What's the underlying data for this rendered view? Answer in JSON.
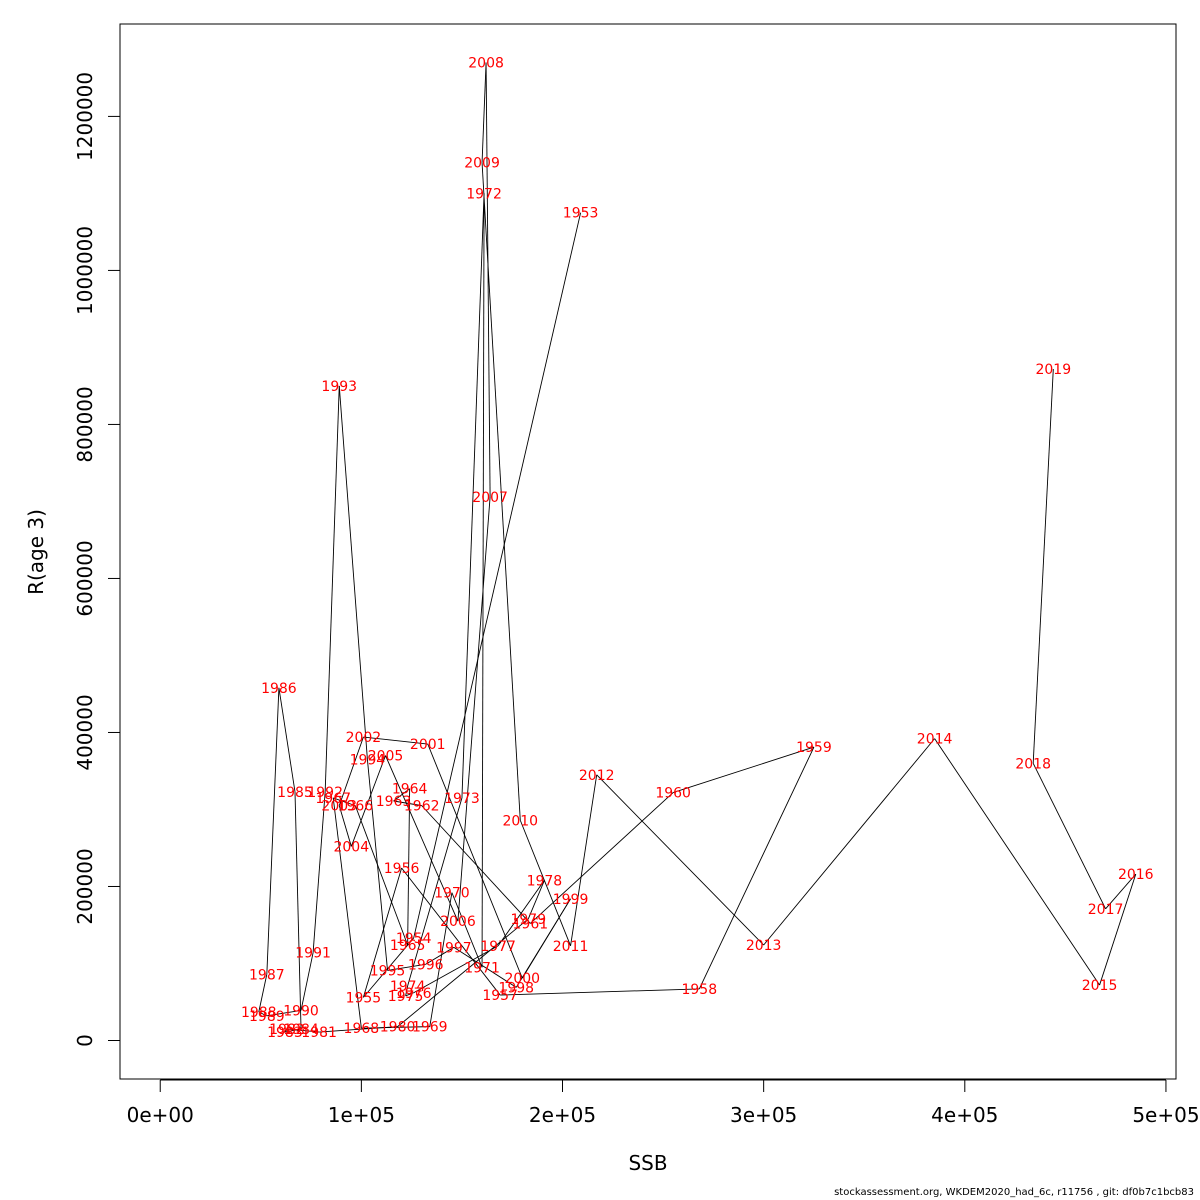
{
  "chart_data": {
    "type": "line",
    "xlabel": "SSB",
    "ylabel": "R(age 3)",
    "xlim": [
      -20000,
      505000
    ],
    "ylim": [
      -50000,
      1320000
    ],
    "x_ticks": [
      0,
      100000,
      200000,
      300000,
      400000,
      500000
    ],
    "x_tick_labels": [
      "0e+00",
      "1e+05",
      "2e+05",
      "3e+05",
      "4e+05",
      "5e+05"
    ],
    "y_ticks": [
      0,
      200000,
      400000,
      600000,
      800000,
      1000000,
      1200000
    ],
    "y_tick_labels": [
      "0",
      "200000",
      "400000",
      "600000",
      "800000",
      "1000000",
      "1200000"
    ],
    "grid": false,
    "label_color": "#ff0000",
    "line_color": "#000000",
    "points": [
      {
        "year": "1953",
        "x": 209000,
        "y": 1075000
      },
      {
        "year": "1954",
        "x": 126000,
        "y": 133000
      },
      {
        "year": "1955",
        "x": 101000,
        "y": 56000
      },
      {
        "year": "1956",
        "x": 120000,
        "y": 224000
      },
      {
        "year": "1957",
        "x": 169000,
        "y": 59000
      },
      {
        "year": "1958",
        "x": 268000,
        "y": 67000
      },
      {
        "year": "1959",
        "x": 325000,
        "y": 381000
      },
      {
        "year": "1960",
        "x": 255000,
        "y": 322000
      },
      {
        "year": "1961",
        "x": 184000,
        "y": 152000
      },
      {
        "year": "1962",
        "x": 130000,
        "y": 305000
      },
      {
        "year": "1963",
        "x": 116000,
        "y": 311000
      },
      {
        "year": "1964",
        "x": 124000,
        "y": 327000
      },
      {
        "year": "1965",
        "x": 123000,
        "y": 124000
      },
      {
        "year": "1966",
        "x": 97000,
        "y": 305000
      },
      {
        "year": "1967",
        "x": 86000,
        "y": 315000
      },
      {
        "year": "1968",
        "x": 100000,
        "y": 16000
      },
      {
        "year": "1969",
        "x": 134000,
        "y": 18000
      },
      {
        "year": "1970",
        "x": 145000,
        "y": 192000
      },
      {
        "year": "1971",
        "x": 160000,
        "y": 95000
      },
      {
        "year": "1972",
        "x": 161000,
        "y": 1100000
      },
      {
        "year": "1973",
        "x": 150000,
        "y": 315000
      },
      {
        "year": "1974",
        "x": 123000,
        "y": 71000
      },
      {
        "year": "1975",
        "x": 122000,
        "y": 58000
      },
      {
        "year": "1976",
        "x": 126000,
        "y": 62000
      },
      {
        "year": "1977",
        "x": 168000,
        "y": 123000
      },
      {
        "year": "1978",
        "x": 191000,
        "y": 208000
      },
      {
        "year": "1979",
        "x": 183000,
        "y": 158000
      },
      {
        "year": "1980",
        "x": 118000,
        "y": 18000
      },
      {
        "year": "1981",
        "x": 79000,
        "y": 11000
      },
      {
        "year": "1982",
        "x": 63000,
        "y": 15000
      },
      {
        "year": "1983",
        "x": 62000,
        "y": 11000
      },
      {
        "year": "1984",
        "x": 70000,
        "y": 15000
      },
      {
        "year": "1985",
        "x": 67000,
        "y": 323000
      },
      {
        "year": "1986",
        "x": 59000,
        "y": 458000
      },
      {
        "year": "1987",
        "x": 53000,
        "y": 86000
      },
      {
        "year": "1988",
        "x": 49000,
        "y": 37000
      },
      {
        "year": "1989",
        "x": 53000,
        "y": 32000
      },
      {
        "year": "1990",
        "x": 70000,
        "y": 39000
      },
      {
        "year": "1991",
        "x": 76000,
        "y": 114000
      },
      {
        "year": "1992",
        "x": 82000,
        "y": 323000
      },
      {
        "year": "1993",
        "x": 89000,
        "y": 850000
      },
      {
        "year": "1994",
        "x": 103000,
        "y": 365000
      },
      {
        "year": "1995",
        "x": 113000,
        "y": 91000
      },
      {
        "year": "1996",
        "x": 132000,
        "y": 99000
      },
      {
        "year": "1997",
        "x": 146000,
        "y": 121000
      },
      {
        "year": "1998",
        "x": 177000,
        "y": 69000
      },
      {
        "year": "1999",
        "x": 204000,
        "y": 184000
      },
      {
        "year": "2000",
        "x": 180000,
        "y": 81000
      },
      {
        "year": "2001",
        "x": 133000,
        "y": 385000
      },
      {
        "year": "2002",
        "x": 101000,
        "y": 394000
      },
      {
        "year": "2003",
        "x": 89000,
        "y": 305000
      },
      {
        "year": "2004",
        "x": 95000,
        "y": 252000
      },
      {
        "year": "2005",
        "x": 112000,
        "y": 370000
      },
      {
        "year": "2006",
        "x": 148000,
        "y": 155000
      },
      {
        "year": "2007",
        "x": 164000,
        "y": 706000
      },
      {
        "year": "2008",
        "x": 162000,
        "y": 1270000
      },
      {
        "year": "2009",
        "x": 160000,
        "y": 1140000
      },
      {
        "year": "2010",
        "x": 179000,
        "y": 286000
      },
      {
        "year": "2011",
        "x": 204000,
        "y": 123000
      },
      {
        "year": "2012",
        "x": 217000,
        "y": 345000
      },
      {
        "year": "2013",
        "x": 300000,
        "y": 124000
      },
      {
        "year": "2014",
        "x": 385000,
        "y": 392000
      },
      {
        "year": "2015",
        "x": 467000,
        "y": 72000
      },
      {
        "year": "2016",
        "x": 485000,
        "y": 216000
      },
      {
        "year": "2017",
        "x": 470000,
        "y": 171000
      },
      {
        "year": "2018",
        "x": 434000,
        "y": 360000
      },
      {
        "year": "2019",
        "x": 444000,
        "y": 872000
      }
    ]
  },
  "footer_text": "stockassessment.org, WKDEM2020_had_6c, r11756 , git: df0b7c1bcb83"
}
